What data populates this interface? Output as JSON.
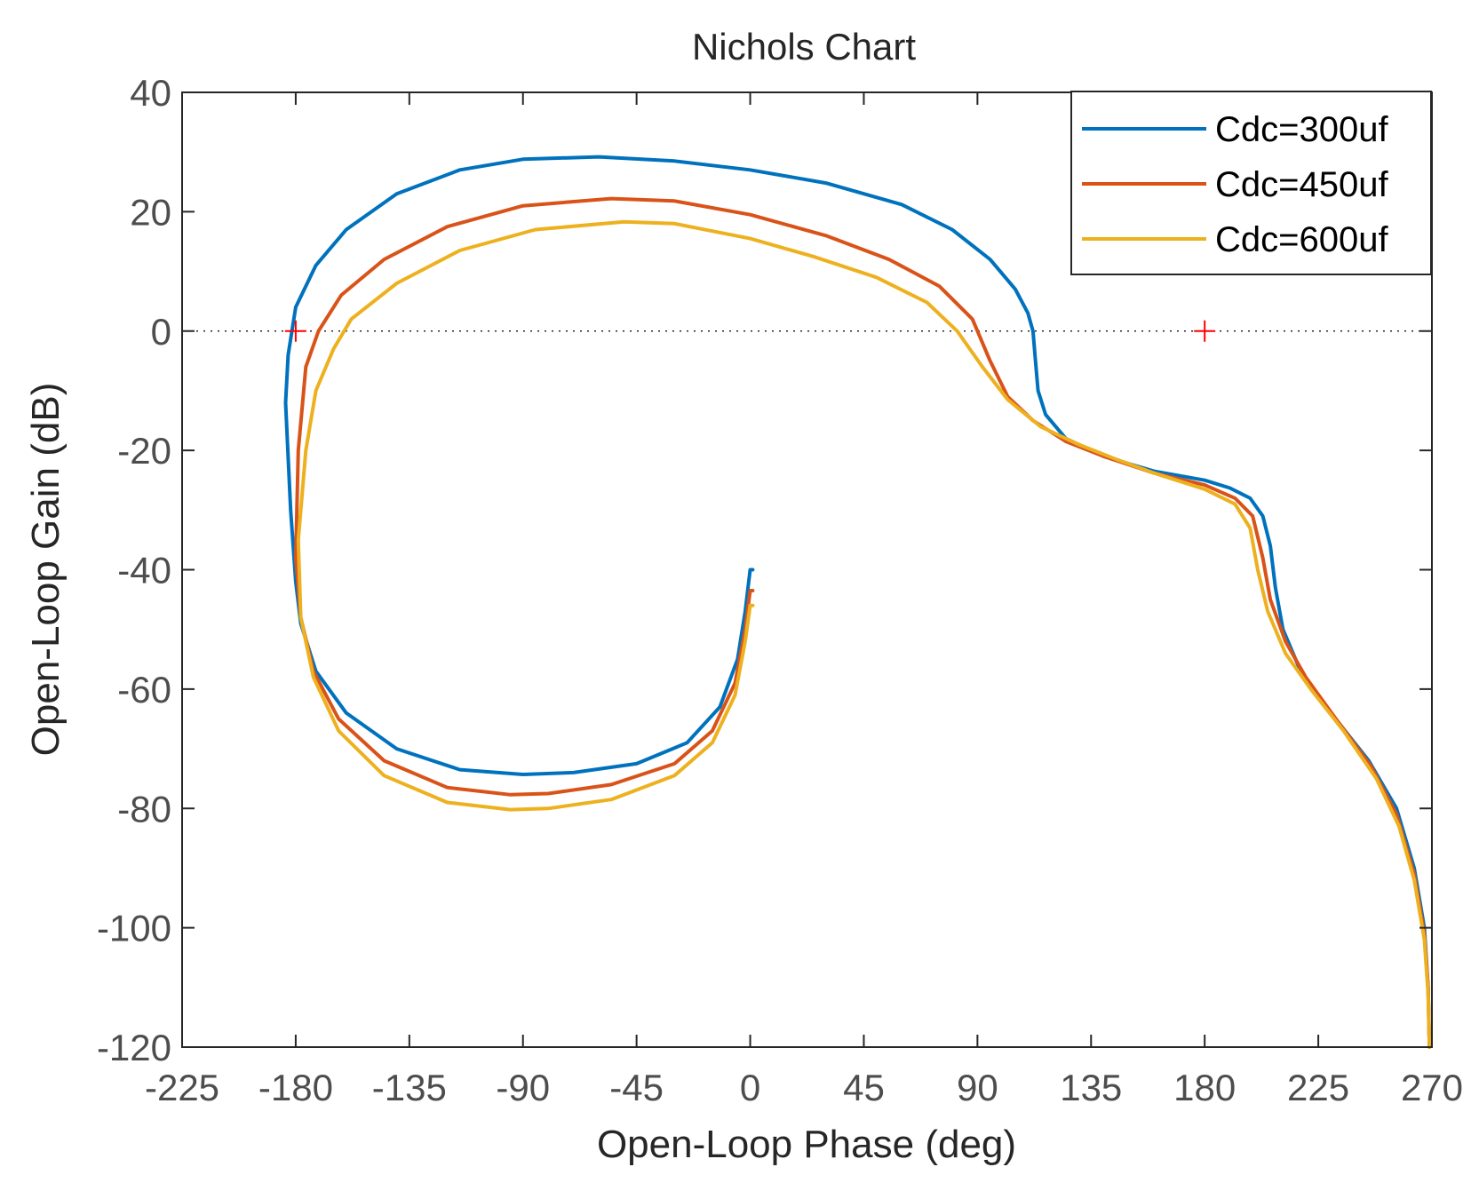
{
  "chart_data": {
    "type": "line",
    "title": "Nichols Chart",
    "xlabel": "Open-Loop Phase (deg)",
    "ylabel": "Open-Loop Gain (dB)",
    "xlim": [
      -225,
      270
    ],
    "ylim": [
      -120,
      40
    ],
    "xticks": [
      -225,
      -180,
      -135,
      -90,
      -45,
      0,
      45,
      90,
      135,
      180,
      225,
      270
    ],
    "yticks": [
      40,
      20,
      0,
      -20,
      -40,
      -60,
      -80,
      -100,
      -120
    ],
    "x_tick_labels": [
      "-225",
      "-180",
      "-135",
      "-90",
      "-45",
      "0",
      "45",
      "90",
      "135",
      "180",
      "225",
      "270"
    ],
    "y_tick_labels": [
      "40",
      "20",
      "0",
      "-20",
      "-40",
      "-60",
      "-80",
      "-100",
      "-120"
    ],
    "legend_position": "top-right",
    "zero_db_line": {
      "gain": 0,
      "style": "dotted"
    },
    "critical_points": [
      {
        "phase": -180,
        "gain": 0,
        "color": "#ff0000"
      },
      {
        "phase": 180,
        "gain": 0,
        "color": "#ff0000"
      }
    ],
    "series": [
      {
        "name": "Cdc=300uf",
        "color": "#0072bd",
        "points": [
          [
            1,
            -40
          ],
          [
            0,
            -40
          ],
          [
            -2,
            -47
          ],
          [
            -5,
            -55
          ],
          [
            -12,
            -63
          ],
          [
            -25,
            -69
          ],
          [
            -45,
            -72.5
          ],
          [
            -70,
            -74
          ],
          [
            -90,
            -74.3
          ],
          [
            -115,
            -73.5
          ],
          [
            -140,
            -70
          ],
          [
            -160,
            -64
          ],
          [
            -172,
            -57
          ],
          [
            -178,
            -49
          ],
          [
            -180,
            -42
          ],
          [
            -182,
            -30
          ],
          [
            -184,
            -12
          ],
          [
            -183,
            -4
          ],
          [
            -180,
            4
          ],
          [
            -172,
            11
          ],
          [
            -160,
            17
          ],
          [
            -140,
            23
          ],
          [
            -115,
            27
          ],
          [
            -90,
            28.8
          ],
          [
            -60,
            29.2
          ],
          [
            -30,
            28.5
          ],
          [
            0,
            27
          ],
          [
            30,
            24.8
          ],
          [
            60,
            21.2
          ],
          [
            80,
            17
          ],
          [
            95,
            12
          ],
          [
            105,
            7
          ],
          [
            110,
            3
          ],
          [
            112,
            0
          ],
          [
            113,
            -5
          ],
          [
            114,
            -10
          ],
          [
            117,
            -14
          ],
          [
            125,
            -18
          ],
          [
            140,
            -21
          ],
          [
            160,
            -23.5
          ],
          [
            180,
            -25
          ],
          [
            190,
            -26.3
          ],
          [
            198,
            -28
          ],
          [
            203,
            -31
          ],
          [
            206,
            -36
          ],
          [
            208,
            -43
          ],
          [
            211,
            -50
          ],
          [
            218,
            -57
          ],
          [
            230,
            -64
          ],
          [
            245,
            -72
          ],
          [
            256,
            -80
          ],
          [
            263,
            -90
          ],
          [
            267,
            -100
          ],
          [
            268.5,
            -110
          ],
          [
            269,
            -120
          ]
        ]
      },
      {
        "name": "Cdc=450uf",
        "color": "#d95319",
        "points": [
          [
            1,
            -43.5
          ],
          [
            0,
            -43.5
          ],
          [
            -2,
            -50
          ],
          [
            -6,
            -59
          ],
          [
            -15,
            -67
          ],
          [
            -30,
            -72.5
          ],
          [
            -55,
            -76
          ],
          [
            -80,
            -77.5
          ],
          [
            -95,
            -77.7
          ],
          [
            -120,
            -76.5
          ],
          [
            -145,
            -72
          ],
          [
            -163,
            -65
          ],
          [
            -173,
            -57
          ],
          [
            -178,
            -48
          ],
          [
            -180,
            -38
          ],
          [
            -179,
            -20
          ],
          [
            -176,
            -6
          ],
          [
            -171,
            0
          ],
          [
            -162,
            6
          ],
          [
            -145,
            12
          ],
          [
            -120,
            17.5
          ],
          [
            -90,
            21
          ],
          [
            -55,
            22.2
          ],
          [
            -30,
            21.8
          ],
          [
            0,
            19.5
          ],
          [
            30,
            16
          ],
          [
            55,
            12
          ],
          [
            75,
            7.5
          ],
          [
            88,
            2
          ],
          [
            95,
            -5
          ],
          [
            102,
            -11
          ],
          [
            112,
            -15
          ],
          [
            125,
            -18.5
          ],
          [
            140,
            -21
          ],
          [
            160,
            -23.8
          ],
          [
            180,
            -25.8
          ],
          [
            192,
            -28
          ],
          [
            199,
            -31
          ],
          [
            203,
            -38
          ],
          [
            206,
            -45
          ],
          [
            212,
            -52
          ],
          [
            220,
            -58
          ],
          [
            232,
            -65
          ],
          [
            246,
            -73
          ],
          [
            256,
            -81
          ],
          [
            263,
            -91
          ],
          [
            267,
            -101
          ],
          [
            268.5,
            -110
          ],
          [
            269,
            -120
          ]
        ]
      },
      {
        "name": "Cdc=600uf",
        "color": "#edb120",
        "points": [
          [
            1,
            -46
          ],
          [
            0,
            -46
          ],
          [
            -2,
            -52
          ],
          [
            -6,
            -61
          ],
          [
            -15,
            -69
          ],
          [
            -30,
            -74.5
          ],
          [
            -55,
            -78.5
          ],
          [
            -80,
            -80
          ],
          [
            -95,
            -80.2
          ],
          [
            -120,
            -79
          ],
          [
            -145,
            -74.5
          ],
          [
            -163,
            -67
          ],
          [
            -173,
            -58
          ],
          [
            -178,
            -48
          ],
          [
            -179,
            -35
          ],
          [
            -176,
            -20
          ],
          [
            -172,
            -10
          ],
          [
            -165,
            -3
          ],
          [
            -158,
            2
          ],
          [
            -140,
            8
          ],
          [
            -115,
            13.5
          ],
          [
            -85,
            17
          ],
          [
            -50,
            18.3
          ],
          [
            -30,
            18
          ],
          [
            0,
            15.5
          ],
          [
            25,
            12.5
          ],
          [
            50,
            9
          ],
          [
            70,
            4.8
          ],
          [
            82,
            0
          ],
          [
            92,
            -6
          ],
          [
            102,
            -11.5
          ],
          [
            115,
            -16
          ],
          [
            130,
            -19
          ],
          [
            145,
            -21.5
          ],
          [
            160,
            -23.8
          ],
          [
            180,
            -26.5
          ],
          [
            192,
            -29
          ],
          [
            198,
            -33
          ],
          [
            201,
            -40
          ],
          [
            205,
            -47
          ],
          [
            212,
            -54
          ],
          [
            222,
            -60
          ],
          [
            235,
            -67
          ],
          [
            248,
            -75
          ],
          [
            257,
            -83
          ],
          [
            263,
            -92
          ],
          [
            267,
            -102
          ],
          [
            268.5,
            -111
          ],
          [
            269,
            -120
          ]
        ]
      }
    ]
  }
}
